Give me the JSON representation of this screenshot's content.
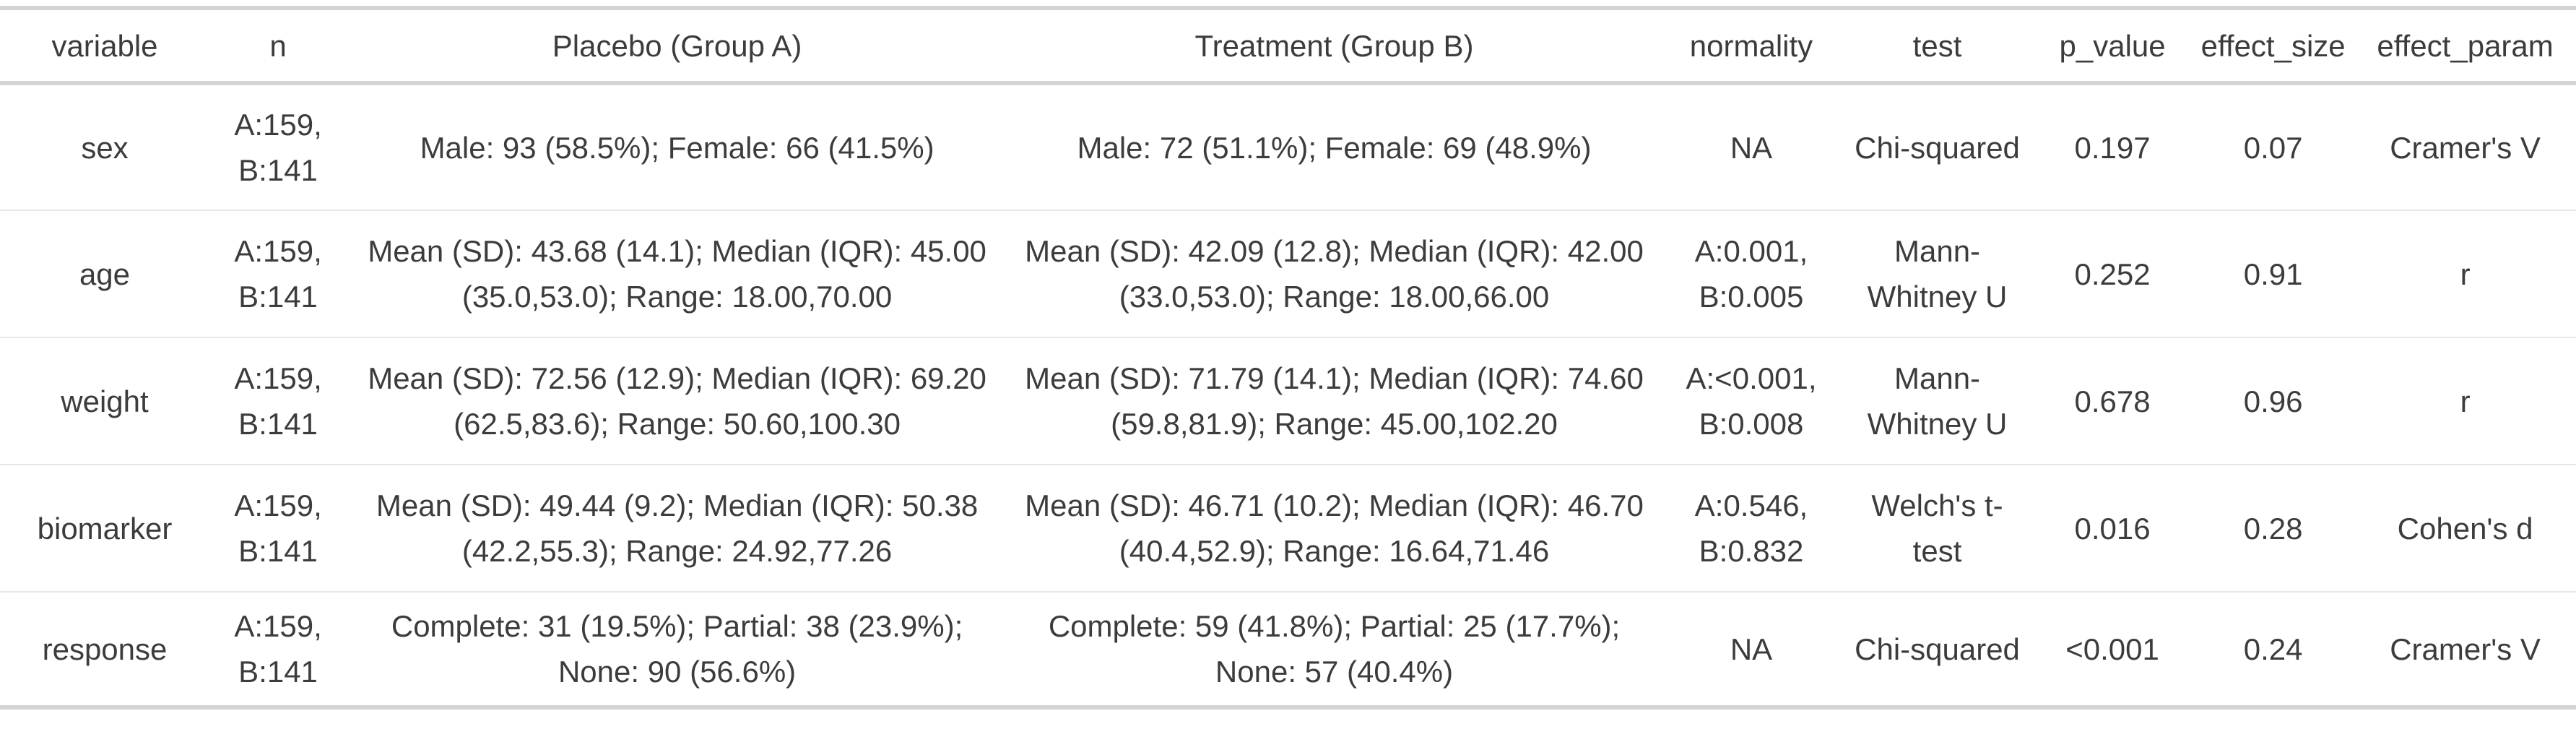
{
  "colors": {
    "background": "#ffffff",
    "text": "#3c3c3c",
    "border_strong": "#d4d4d4",
    "border_light": "#e7e7e7"
  },
  "chart_data": {
    "type": "table",
    "title": "",
    "legend": null,
    "columns": [
      {
        "key": "variable",
        "label": "variable",
        "width_pct": 8.13
      },
      {
        "key": "n",
        "label": "n",
        "width_pct": 5.33
      },
      {
        "key": "placebo",
        "label": "Placebo (Group A)",
        "width_pct": 25.65
      },
      {
        "key": "treatment",
        "label": "Treatment (Group B)",
        "width_pct": 25.37
      },
      {
        "key": "normality",
        "label": "normality",
        "width_pct": 7.01
      },
      {
        "key": "test",
        "label": "test",
        "width_pct": 7.43
      },
      {
        "key": "p_value",
        "label": "p_value",
        "width_pct": 6.17
      },
      {
        "key": "effect_size",
        "label": "effect_size",
        "width_pct": 6.31
      },
      {
        "key": "effect_param",
        "label": "effect_param",
        "width_pct": 8.6
      }
    ],
    "rows": [
      {
        "variable": "sex",
        "n": "A:159, B:141",
        "placebo": "Male: 93 (58.5%); Female: 66 (41.5%)",
        "treatment": "Male: 72 (51.1%); Female: 69 (48.9%)",
        "normality": "NA",
        "test": "Chi-squared",
        "p_value": "0.197",
        "effect_size": "0.07",
        "effect_param": "Cramer's V"
      },
      {
        "variable": "age",
        "n": "A:159, B:141",
        "placebo": "Mean (SD): 43.68 (14.1); Median (IQR): 45.00 (35.0,53.0); Range: 18.00,70.00",
        "treatment": "Mean (SD): 42.09 (12.8); Median (IQR): 42.00 (33.0,53.0); Range: 18.00,66.00",
        "normality": "A:0.001, B:0.005",
        "test": "Mann-Whitney U",
        "p_value": "0.252",
        "effect_size": "0.91",
        "effect_param": "r"
      },
      {
        "variable": "weight",
        "n": "A:159, B:141",
        "placebo": "Mean (SD): 72.56 (12.9); Median (IQR): 69.20 (62.5,83.6); Range: 50.60,100.30",
        "treatment": "Mean (SD): 71.79 (14.1); Median (IQR): 74.60 (59.8,81.9); Range: 45.00,102.20",
        "normality": "A:<0.001, B:0.008",
        "test": "Mann-Whitney U",
        "p_value": "0.678",
        "effect_size": "0.96",
        "effect_param": "r"
      },
      {
        "variable": "biomarker",
        "n": "A:159, B:141",
        "placebo": "Mean (SD): 49.44 (9.2); Median (IQR): 50.38 (42.2,55.3); Range: 24.92,77.26",
        "treatment": "Mean (SD): 46.71 (10.2); Median (IQR): 46.70 (40.4,52.9); Range: 16.64,71.46",
        "normality": "A:0.546, B:0.832",
        "test": "Welch's t-test",
        "p_value": "0.016",
        "effect_size": "0.28",
        "effect_param": "Cohen's d"
      },
      {
        "variable": "response",
        "n": "A:159, B:141",
        "placebo": "Complete: 31 (19.5%); Partial: 38 (23.9%); None: 90 (56.6%)",
        "treatment": "Complete: 59 (41.8%); Partial: 25 (17.7%); None: 57 (40.4%)",
        "normality": "NA",
        "test": "Chi-squared",
        "p_value": "<0.001",
        "effect_size": "0.24",
        "effect_param": "Cramer's V"
      }
    ]
  }
}
